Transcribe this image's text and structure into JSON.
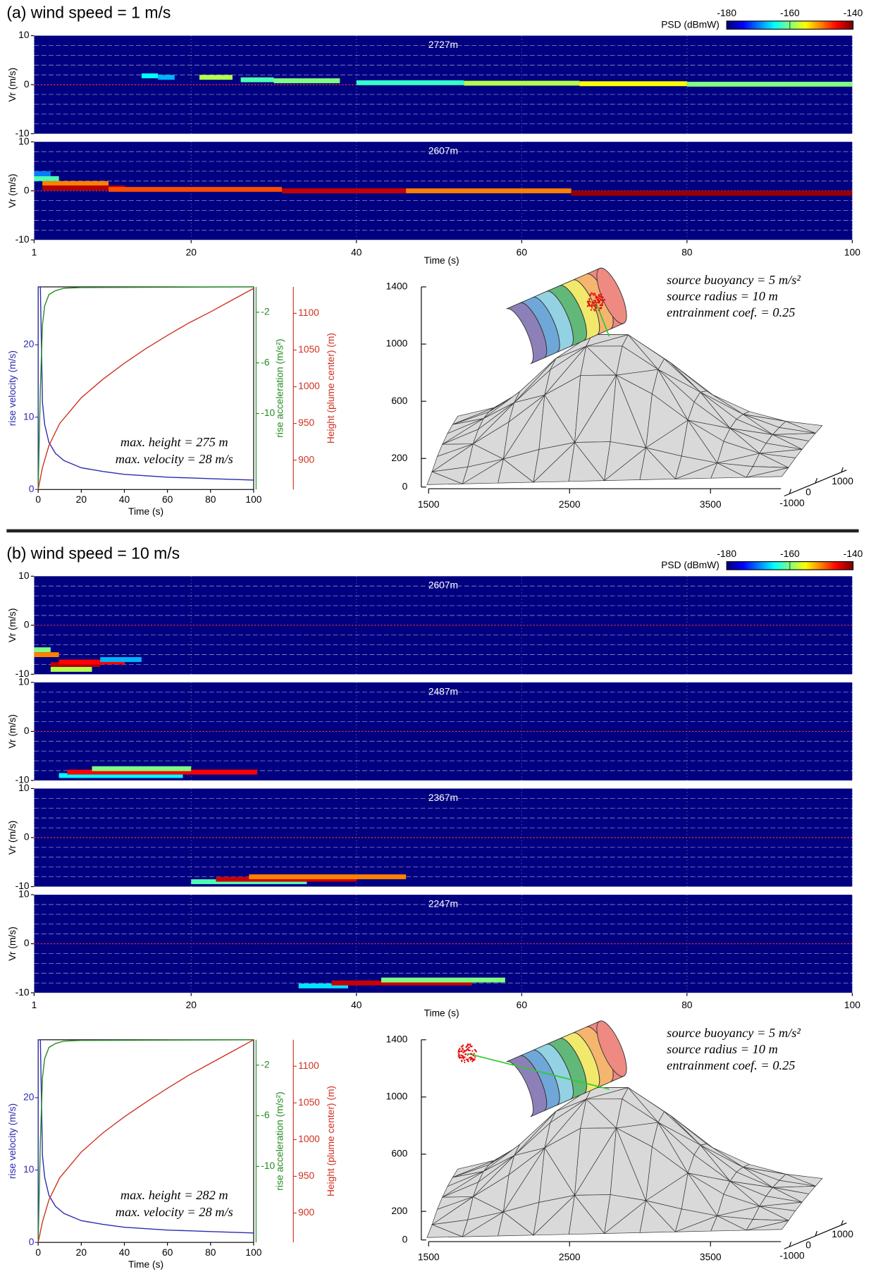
{
  "chart_data": [
    {
      "type": "panel",
      "title": "(a) wind speed = 1 m/s",
      "colorbar": {
        "label": "PSD (dBmW)",
        "lim": [
          -180,
          -140
        ],
        "ticks": [
          -180,
          -160,
          -140
        ],
        "colormap": "jet"
      },
      "spectrogram": {
        "type": "spectrogram",
        "xlabel": "Time (s)",
        "ylabel": "Vr (m/s)",
        "xlim": [
          1,
          100
        ],
        "xticks": [
          1,
          20,
          40,
          60,
          80,
          100
        ],
        "ylim": [
          -10,
          10
        ],
        "yticks": [
          -10,
          0,
          10
        ],
        "minor_yticks": [
          -8,
          -6,
          -4,
          -2,
          2,
          4,
          6,
          8
        ],
        "grid": true,
        "rows": [
          {
            "label": "2727m",
            "signal": [
              {
                "t": [
                  14,
                  16
                ],
                "vr": 1.8,
                "psd": -165
              },
              {
                "t": [
                  16,
                  18
                ],
                "vr": 1.5,
                "psd": -168
              },
              {
                "t": [
                  21,
                  25
                ],
                "vr": 1.5,
                "psd": -158
              },
              {
                "t": [
                  26,
                  30
                ],
                "vr": 1.0,
                "psd": -162
              },
              {
                "t": [
                  30,
                  38
                ],
                "vr": 0.8,
                "psd": -160
              },
              {
                "t": [
                  40,
                  53
                ],
                "vr": 0.4,
                "psd": -163
              },
              {
                "t": [
                  53,
                  67
                ],
                "vr": 0.3,
                "psd": -158
              },
              {
                "t": [
                  67,
                  80
                ],
                "vr": 0.2,
                "psd": -155
              },
              {
                "t": [
                  80,
                  100
                ],
                "vr": 0.1,
                "psd": -160
              }
            ]
          },
          {
            "label": "2607m",
            "signal": [
              {
                "t": [
                  1,
                  3
                ],
                "vr": 3.5,
                "psd": -170
              },
              {
                "t": [
                  1,
                  4
                ],
                "vr": 2.5,
                "psd": -162
              },
              {
                "t": [
                  2,
                  10
                ],
                "vr": 1.5,
                "psd": -150
              },
              {
                "t": [
                  2,
                  12
                ],
                "vr": 0.6,
                "psd": -142
              },
              {
                "t": [
                  10,
                  31
                ],
                "vr": 0.3,
                "psd": -148
              },
              {
                "t": [
                  31,
                  46
                ],
                "vr": 0,
                "psd": -143
              },
              {
                "t": [
                  46,
                  66
                ],
                "vr": 0,
                "psd": -150
              },
              {
                "t": [
                  66,
                  100
                ],
                "vr": -0.5,
                "psd": -141
              }
            ]
          }
        ]
      },
      "profile": {
        "type": "line",
        "xlabel": "Time (s)",
        "xlim": [
          0,
          100
        ],
        "xticks": [
          0,
          20,
          40,
          60,
          80,
          100
        ],
        "axes": [
          {
            "label": "rise velocity (m/s)",
            "lim": [
              0,
              28
            ],
            "ticks": [
              0,
              10,
              20
            ],
            "color": "#2b2bb0"
          },
          {
            "label": "rise acceleration (m/s²)",
            "lim": [
              -16,
              0
            ],
            "ticks": [
              -2,
              -6,
              -10
            ],
            "color": "#228b22"
          },
          {
            "label": "Height (plume center) (m)",
            "lim": [
              860,
              1136
            ],
            "ticks": [
              900,
              950,
              1000,
              1050,
              1100
            ],
            "color": "#d03020"
          }
        ],
        "series": [
          {
            "axis": 0,
            "x": [
              0,
              1,
              2,
              3,
              5,
              8,
              12,
              20,
              30,
              40,
              50,
              60,
              70,
              80,
              90,
              100
            ],
            "values": [
              28,
              28,
              12,
              9,
              6.5,
              5,
              4,
              3,
              2.5,
              2.1,
              1.9,
              1.7,
              1.6,
              1.5,
              1.4,
              1.3
            ]
          },
          {
            "axis": 1,
            "x": [
              0,
              1,
              2,
              3,
              5,
              8,
              12,
              20,
              100
            ],
            "values": [
              -16,
              -8,
              -3,
              -1.5,
              -0.6,
              -0.3,
              -0.1,
              -0.05,
              0
            ]
          },
          {
            "axis": 2,
            "x": [
              0,
              2,
              5,
              10,
              20,
              30,
              40,
              50,
              60,
              70,
              80,
              90,
              100
            ],
            "values": [
              860,
              890,
              920,
              950,
              985,
              1010,
              1032,
              1052,
              1070,
              1087,
              1102,
              1118,
              1134
            ]
          }
        ],
        "annotations": [
          "max. height = 275 m",
          "max. velocity = 28 m/s"
        ]
      },
      "terrain": {
        "type": "terrain",
        "zlim": [
          0,
          1400
        ],
        "zticks": [
          0,
          200,
          600,
          1000,
          1400
        ],
        "xlim": [
          1500,
          4000
        ],
        "xticks": [
          1500,
          2500,
          3500
        ],
        "ylim": [
          -1200,
          1200
        ],
        "yticks": [
          -1000,
          0,
          1000
        ],
        "annotations": [
          "source buoyancy = 5 m/s²",
          "source radius = 10 m",
          "entrainment coef. = 0.25"
        ]
      }
    },
    {
      "type": "panel",
      "title": "(b) wind speed = 10 m/s",
      "colorbar": {
        "label": "PSD (dBmW)",
        "lim": [
          -180,
          -140
        ],
        "ticks": [
          -180,
          -160,
          -140
        ],
        "colormap": "jet"
      },
      "spectrogram": {
        "type": "spectrogram",
        "xlabel": "Time (s)",
        "ylabel": "Vr (m/s)",
        "xlim": [
          1,
          100
        ],
        "xticks": [
          1,
          20,
          40,
          60,
          80,
          100
        ],
        "ylim": [
          -10,
          10
        ],
        "yticks": [
          -10,
          0,
          10
        ],
        "minor_yticks": [
          -8,
          -6,
          -4,
          -2,
          2,
          4,
          6,
          8
        ],
        "grid": true,
        "rows": [
          {
            "label": "2607m",
            "signal": [
              {
                "t": [
                  1,
                  3
                ],
                "vr": -5,
                "psd": -160
              },
              {
                "t": [
                  1,
                  4
                ],
                "vr": -6,
                "psd": -150
              },
              {
                "t": [
                  3,
                  9
                ],
                "vr": -8,
                "psd": -142
              },
              {
                "t": [
                  4,
                  12
                ],
                "vr": -7.5,
                "psd": -145
              },
              {
                "t": [
                  9,
                  14
                ],
                "vr": -7,
                "psd": -168
              },
              {
                "t": [
                  3,
                  8
                ],
                "vr": -9,
                "psd": -158
              }
            ]
          },
          {
            "label": "2487m",
            "signal": [
              {
                "t": [
                  4,
                  19
                ],
                "vr": -9,
                "psd": -165
              },
              {
                "t": [
                  5,
                  28
                ],
                "vr": -8.3,
                "psd": -145
              },
              {
                "t": [
                  8,
                  20
                ],
                "vr": -7.6,
                "psd": -160
              }
            ]
          },
          {
            "label": "2367m",
            "signal": [
              {
                "t": [
                  20,
                  34
                ],
                "vr": -9,
                "psd": -162
              },
              {
                "t": [
                  23,
                  40
                ],
                "vr": -8.5,
                "psd": -143
              },
              {
                "t": [
                  27,
                  46
                ],
                "vr": -8,
                "psd": -150
              }
            ]
          },
          {
            "label": "2247m",
            "signal": [
              {
                "t": [
                  33,
                  39
                ],
                "vr": -8.6,
                "psd": -166
              },
              {
                "t": [
                  37,
                  54
                ],
                "vr": -8,
                "psd": -143
              },
              {
                "t": [
                  43,
                  58
                ],
                "vr": -7.4,
                "psd": -160
              }
            ]
          }
        ]
      },
      "profile": {
        "type": "line",
        "xlabel": "Time (s)",
        "xlim": [
          0,
          100
        ],
        "xticks": [
          0,
          20,
          40,
          60,
          80,
          100
        ],
        "axes": [
          {
            "label": "rise velocity (m/s)",
            "lim": [
              0,
              28
            ],
            "ticks": [
              0,
              10,
              20
            ],
            "color": "#2b2bb0"
          },
          {
            "label": "rise acceleration (m/s²)",
            "lim": [
              -16,
              0
            ],
            "ticks": [
              -2,
              -6,
              -10
            ],
            "color": "#228b22"
          },
          {
            "label": "Height (plume center) (m)",
            "lim": [
              860,
              1136
            ],
            "ticks": [
              900,
              950,
              1000,
              1050,
              1100
            ],
            "color": "#d03020"
          }
        ],
        "series": [
          {
            "axis": 0,
            "x": [
              0,
              1,
              2,
              3,
              5,
              8,
              12,
              20,
              30,
              40,
              50,
              60,
              70,
              80,
              90,
              100
            ],
            "values": [
              28,
              28,
              12,
              9,
              6.5,
              5,
              4,
              3,
              2.5,
              2.1,
              1.9,
              1.7,
              1.6,
              1.5,
              1.4,
              1.3
            ]
          },
          {
            "axis": 1,
            "x": [
              0,
              1,
              2,
              3,
              5,
              8,
              12,
              20,
              100
            ],
            "values": [
              -16,
              -8,
              -3,
              -1.5,
              -0.6,
              -0.3,
              -0.1,
              -0.05,
              0
            ]
          },
          {
            "axis": 2,
            "x": [
              0,
              2,
              5,
              10,
              20,
              30,
              40,
              50,
              60,
              70,
              80,
              90,
              100
            ],
            "values": [
              860,
              888,
              918,
              948,
              983,
              1009,
              1031,
              1051,
              1070,
              1088,
              1104,
              1120,
              1136
            ]
          }
        ],
        "annotations": [
          "max. height = 282 m",
          "max. velocity = 28 m/s"
        ]
      },
      "terrain": {
        "type": "terrain",
        "zlim": [
          0,
          1400
        ],
        "zticks": [
          0,
          200,
          600,
          1000,
          1400
        ],
        "xlim": [
          1500,
          4000
        ],
        "xticks": [
          1500,
          2500,
          3500
        ],
        "ylim": [
          -1200,
          1200
        ],
        "yticks": [
          -1000,
          0,
          1000
        ],
        "annotations": [
          "source buoyancy = 5 m/s²",
          "source radius = 10 m",
          "entrainment coef. = 0.25"
        ]
      }
    }
  ]
}
